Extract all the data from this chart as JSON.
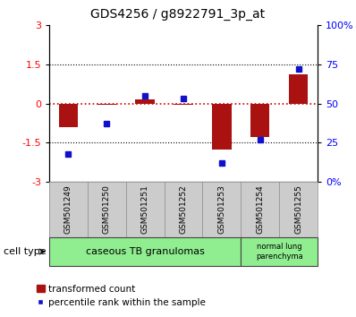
{
  "title": "GDS4256 / g8922791_3p_at",
  "samples": [
    "GSM501249",
    "GSM501250",
    "GSM501251",
    "GSM501252",
    "GSM501253",
    "GSM501254",
    "GSM501255"
  ],
  "transformed_count": [
    -0.9,
    -0.05,
    0.15,
    -0.05,
    -1.75,
    -1.3,
    1.1
  ],
  "percentile_rank": [
    18,
    37,
    55,
    53,
    12,
    27,
    72
  ],
  "ylim_left": [
    -3,
    3
  ],
  "ylim_right": [
    0,
    100
  ],
  "yticks_left": [
    -3,
    -1.5,
    0,
    1.5,
    3
  ],
  "yticks_right": [
    0,
    25,
    50,
    75,
    100
  ],
  "ytick_labels_right": [
    "0%",
    "25",
    "50",
    "75",
    "100%"
  ],
  "bar_color": "#aa1111",
  "dot_color": "#1111cc",
  "zero_line_color": "#cc0000",
  "grid_line_color": "#000000",
  "cell_type_groups": [
    {
      "label": "caseous TB granulomas",
      "samples_span": [
        0,
        4
      ],
      "color": "#90ee90"
    },
    {
      "label": "normal lung\nparenchyma",
      "samples_span": [
        5,
        6
      ],
      "color": "#90ee90"
    }
  ],
  "legend_bar_label": "transformed count",
  "legend_dot_label": "percentile rank within the sample",
  "cell_type_label": "cell type",
  "background_color": "#ffffff",
  "plot_bg_color": "#ffffff",
  "tick_area_color": "#cccccc"
}
